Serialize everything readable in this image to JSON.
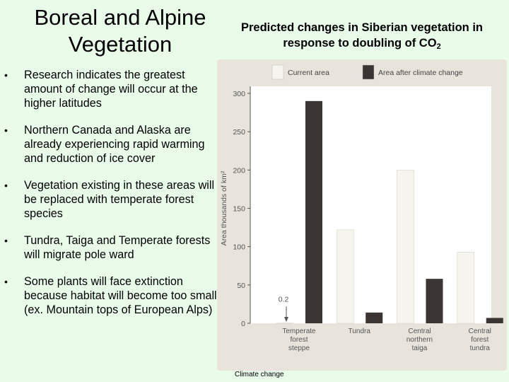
{
  "slide": {
    "title_line1": "Boreal and Alpine",
    "title_line2": "Vegetation",
    "bullets": [
      "Research indicates the greatest amount of change will occur at the higher latitudes",
      "Northern Canada and Alaska are already experiencing rapid warming and reduction of ice cover",
      "Vegetation existing in these areas will be replaced with temperate forest species",
      "Tundra, Taiga and Temperate forests will migrate pole ward",
      "Some plants will face extinction because habitat will become too small (ex.  Mountain tops of European Alps)"
    ],
    "caption": "Climate change"
  },
  "chart_data": {
    "type": "bar",
    "title_line1": "Predicted changes in Siberian vegetation in",
    "title_line2_prefix": "response to doubling of CO",
    "title_line2_sub": "2",
    "ylabel": "Area thousands of km²",
    "ylim": [
      0,
      300
    ],
    "yticks": [
      0,
      50,
      100,
      150,
      200,
      250,
      300
    ],
    "categories": [
      [
        "Temperate",
        "forest",
        "steppe"
      ],
      [
        "Tundra"
      ],
      [
        "Central",
        "northern",
        "taiga"
      ],
      [
        "Central",
        "forest",
        "tundra"
      ]
    ],
    "series": [
      {
        "name": "Current area",
        "color": "#f6f4ee",
        "values": [
          0.2,
          122,
          200,
          93
        ]
      },
      {
        "name": "Area after climate change",
        "color": "#3a3532",
        "values": [
          290,
          14,
          58,
          7
        ]
      }
    ],
    "annotation": "0.2",
    "grid": false,
    "legend_position": "top"
  }
}
